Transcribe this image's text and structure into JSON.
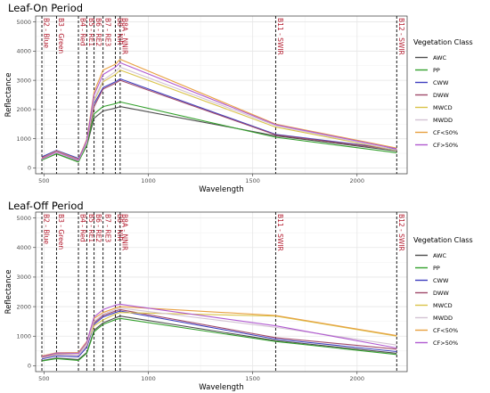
{
  "chart_data": [
    {
      "type": "line",
      "title": "Leaf-On Period",
      "xlabel": "Wavelength",
      "ylabel": "Reflectance",
      "xlim": [
        460,
        2240
      ],
      "ylim": [
        -200,
        5200
      ],
      "xticks": [
        500,
        1000,
        1500,
        2000
      ],
      "yticks": [
        0,
        1000,
        2000,
        3000,
        4000,
        5000
      ],
      "grid": true,
      "legend_title": "Vegetation Class",
      "legend_position": "right",
      "x": [
        490,
        560,
        665,
        705,
        740,
        783,
        842,
        865,
        1610,
        2190
      ],
      "bands": [
        {
          "label": "B2 - Blue",
          "x": 490
        },
        {
          "label": "B3 - Green",
          "x": 560
        },
        {
          "label": "B4 - Red",
          "x": 665
        },
        {
          "label": "B5 - RE1",
          "x": 705
        },
        {
          "label": "B6 - RE2",
          "x": 740
        },
        {
          "label": "B7 - RE3",
          "x": 783
        },
        {
          "label": "B8 - NIR",
          "x": 842
        },
        {
          "label": "B8A - NNIR",
          "x": 865
        },
        {
          "label": "B11 - SWIR",
          "x": 1610
        },
        {
          "label": "B12 - SWIR",
          "x": 2190
        }
      ],
      "series": [
        {
          "name": "AWC",
          "color": "#4d4d4d",
          "values": [
            290,
            500,
            230,
            750,
            1700,
            1950,
            2050,
            2100,
            1100,
            580
          ]
        },
        {
          "name": "PP",
          "color": "#33a02c",
          "values": [
            270,
            480,
            200,
            780,
            1850,
            2100,
            2200,
            2260,
            1050,
            520
          ]
        },
        {
          "name": "CWW",
          "color": "#3f3fbf",
          "values": [
            380,
            600,
            330,
            900,
            2200,
            2750,
            2950,
            3050,
            1150,
            640
          ]
        },
        {
          "name": "DWW",
          "color": "#a04a6a",
          "values": [
            350,
            560,
            290,
            850,
            2100,
            2700,
            2900,
            3000,
            1130,
            620
          ]
        },
        {
          "name": "MWCD",
          "color": "#d9c34a",
          "values": [
            320,
            540,
            270,
            880,
            2300,
            2950,
            3200,
            3350,
            1400,
            600
          ]
        },
        {
          "name": "MWDD",
          "color": "#d3c3d3",
          "values": [
            300,
            520,
            250,
            860,
            2350,
            3000,
            3300,
            3450,
            1450,
            610
          ]
        },
        {
          "name": "CF<50%",
          "color": "#e8a040",
          "values": [
            330,
            580,
            290,
            980,
            2600,
            3350,
            3550,
            3720,
            1500,
            680
          ]
        },
        {
          "name": "CF>50%",
          "color": "#b05ad0",
          "values": [
            310,
            560,
            270,
            940,
            2500,
            3200,
            3450,
            3600,
            1480,
            650
          ]
        }
      ]
    },
    {
      "type": "line",
      "title": "Leaf-Off Period",
      "xlabel": "Wavelength",
      "ylabel": "Reflectance",
      "xlim": [
        460,
        2240
      ],
      "ylim": [
        -200,
        5200
      ],
      "xticks": [
        500,
        1000,
        1500,
        2000
      ],
      "yticks": [
        0,
        1000,
        2000,
        3000,
        4000,
        5000
      ],
      "grid": true,
      "legend_title": "Vegetation Class",
      "legend_position": "right",
      "x": [
        490,
        560,
        665,
        705,
        740,
        783,
        842,
        865,
        1610,
        2190
      ],
      "bands": [
        {
          "label": "B2 - Blue",
          "x": 490
        },
        {
          "label": "B3 - Green",
          "x": 560
        },
        {
          "label": "B4 - Red",
          "x": 665
        },
        {
          "label": "B5 - RE1",
          "x": 705
        },
        {
          "label": "B6 - RE2",
          "x": 740
        },
        {
          "label": "B7 - RE3",
          "x": 783
        },
        {
          "label": "B8 - NIR",
          "x": 842
        },
        {
          "label": "B8A - NNIR",
          "x": 865
        },
        {
          "label": "B11 - SWIR",
          "x": 1610
        },
        {
          "label": "B12 - SWIR",
          "x": 2190
        }
      ],
      "series": [
        {
          "name": "AWC",
          "color": "#4d4d4d",
          "values": [
            170,
            260,
            210,
            450,
            1200,
            1450,
            1620,
            1680,
            850,
            420
          ]
        },
        {
          "name": "PP",
          "color": "#33a02c",
          "values": [
            160,
            240,
            180,
            420,
            1150,
            1400,
            1560,
            1600,
            820,
            380
          ]
        },
        {
          "name": "CWW",
          "color": "#3f3fbf",
          "values": [
            230,
            330,
            300,
            620,
            1400,
            1650,
            1800,
            1850,
            900,
            480
          ]
        },
        {
          "name": "DWW",
          "color": "#a04a6a",
          "values": [
            280,
            380,
            360,
            680,
            1450,
            1700,
            1850,
            1900,
            950,
            560
          ]
        },
        {
          "name": "MWCD",
          "color": "#d9c34a",
          "values": [
            300,
            420,
            420,
            760,
            1350,
            1550,
            1750,
            1800,
            1680,
            1000
          ]
        },
        {
          "name": "MWDD",
          "color": "#d3c3d3",
          "values": [
            260,
            360,
            350,
            700,
            1500,
            1750,
            1900,
            1950,
            1300,
            700
          ]
        },
        {
          "name": "CF<50%",
          "color": "#e8a040",
          "values": [
            330,
            440,
            450,
            820,
            1600,
            1800,
            1950,
            2000,
            1700,
            1020
          ]
        },
        {
          "name": "CF>50%",
          "color": "#b05ad0",
          "values": [
            310,
            430,
            420,
            790,
            1650,
            1900,
            2050,
            2080,
            1350,
            600
          ]
        }
      ]
    }
  ]
}
